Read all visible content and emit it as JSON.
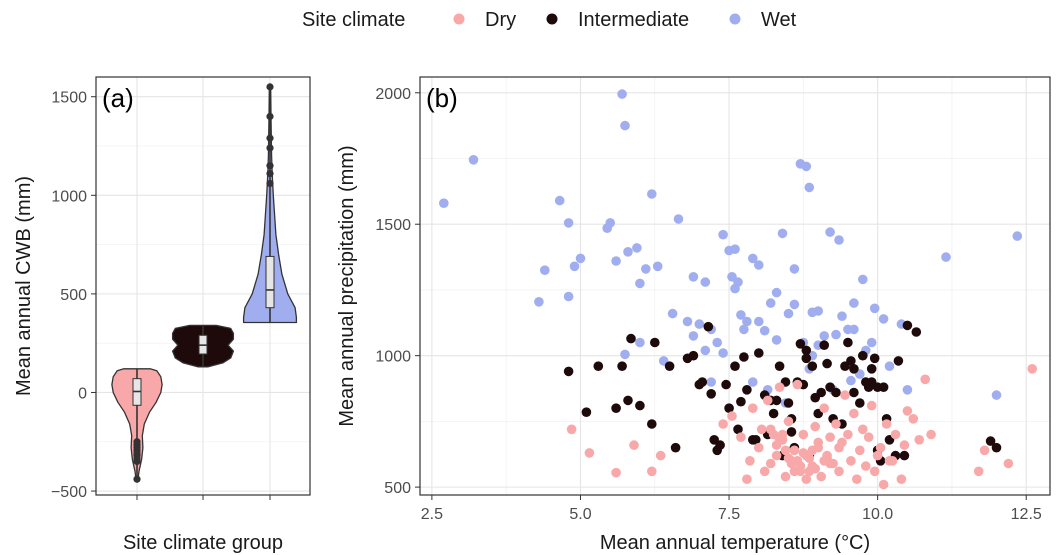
{
  "legend": {
    "title": "Site climate",
    "items": [
      {
        "label": "Dry",
        "color": "#F8A8A8"
      },
      {
        "label": "Intermediate",
        "color": "#1E0A0A"
      },
      {
        "label": "Wet",
        "color": "#A0AEF0"
      }
    ]
  },
  "chart_data": [
    {
      "type": "violin",
      "panel_label": "(a)",
      "xlabel": "Site climate group",
      "ylabel": "Mean annual CWB (mm)",
      "ylim": [
        -520,
        1600
      ],
      "yticks": [
        -500,
        0,
        500,
        1000,
        1500
      ],
      "grid": true,
      "groups": [
        {
          "name": "Dry",
          "color": "#F8A8A8",
          "min": -440,
          "q1": -65,
          "median": 5,
          "q3": 70,
          "max": 120,
          "outliers": [
            -250,
            -265,
            -280,
            -295,
            -310,
            -320,
            -335,
            -350,
            -440
          ],
          "density": [
            [
              -440,
              0.015
            ],
            [
              -400,
              0.03
            ],
            [
              -340,
              0.07
            ],
            [
              -280,
              0.09
            ],
            [
              -220,
              0.08
            ],
            [
              -160,
              0.11
            ],
            [
              -100,
              0.19
            ],
            [
              -50,
              0.29
            ],
            [
              0,
              0.36
            ],
            [
              40,
              0.38
            ],
            [
              80,
              0.36
            ],
            [
              110,
              0.3
            ],
            [
              120,
              0.2
            ]
          ]
        },
        {
          "name": "Intermediate",
          "color": "#1E0A0A",
          "min": 130,
          "q1": 195,
          "median": 240,
          "q3": 290,
          "max": 340,
          "outliers": [],
          "density": [
            [
              130,
              0.08
            ],
            [
              150,
              0.3
            ],
            [
              175,
              0.42
            ],
            [
              210,
              0.46
            ],
            [
              240,
              0.38
            ],
            [
              270,
              0.46
            ],
            [
              300,
              0.46
            ],
            [
              325,
              0.42
            ],
            [
              340,
              0.2
            ]
          ]
        },
        {
          "name": "Wet",
          "color": "#A0AEF0",
          "min": 355,
          "q1": 430,
          "median": 520,
          "q3": 690,
          "max": 1550,
          "outliers": [
            1060,
            1110,
            1150,
            1240,
            1290,
            1400,
            1550
          ],
          "density": [
            [
              355,
              0.4
            ],
            [
              380,
              0.4
            ],
            [
              430,
              0.38
            ],
            [
              500,
              0.27
            ],
            [
              600,
              0.18
            ],
            [
              700,
              0.13
            ],
            [
              800,
              0.09
            ],
            [
              900,
              0.07
            ],
            [
              1000,
              0.05
            ],
            [
              1100,
              0.035
            ],
            [
              1200,
              0.025
            ],
            [
              1300,
              0.02
            ],
            [
              1400,
              0.015
            ],
            [
              1550,
              0.01
            ]
          ]
        }
      ]
    },
    {
      "type": "scatter",
      "panel_label": "(b)",
      "xlabel": "Mean annual temperature (°C)",
      "ylabel": "Mean annual precipitation (mm)",
      "xlim": [
        2.3,
        12.9
      ],
      "ylim": [
        470,
        2060
      ],
      "xticks": [
        2.5,
        5.0,
        7.5,
        10.0,
        12.5
      ],
      "xtick_labels": [
        "2.5",
        "5.0",
        "7.5",
        "10.0",
        "12.5"
      ],
      "yticks": [
        500,
        1000,
        1500,
        2000
      ],
      "grid": true,
      "series": [
        {
          "name": "Wet",
          "color": "#A0AEF0",
          "x": [
            2.7,
            3.2,
            4.3,
            4.4,
            4.65,
            4.8,
            4.8,
            4.9,
            5.0,
            5.45,
            5.5,
            5.6,
            5.7,
            5.75,
            5.75,
            5.8,
            5.95,
            6.0,
            6.1,
            6.2,
            6.3,
            6.55,
            6.65,
            6.9,
            6.9,
            7.0,
            7.1,
            7.2,
            7.4,
            7.5,
            7.55,
            7.6,
            7.65,
            7.7,
            7.9,
            8.0,
            8.2,
            8.4,
            8.6,
            8.7,
            8.8,
            8.85,
            8.9,
            9.0,
            9.2,
            9.35,
            9.5,
            9.6,
            9.75,
            9.95,
            10.1,
            10.4,
            11.15,
            12.0,
            12.35,
            7.3,
            7.8,
            8.1,
            8.3,
            8.5,
            8.75,
            9.1,
            9.3,
            9.6,
            9.9,
            6.8,
            7.1,
            7.4,
            7.6,
            8.0,
            8.3,
            8.6,
            9.0,
            9.4,
            9.8,
            10.2,
            7.9,
            8.15,
            8.45,
            8.85,
            9.25,
            9.55,
            6.0,
            6.4,
            7.2,
            8.9,
            9.7,
            10.5,
            7.75
          ],
          "y": [
            1580,
            1745,
            1205,
            1325,
            1590,
            1225,
            1505,
            1340,
            1370,
            1485,
            1505,
            1360,
            1995,
            1875,
            1005,
            1395,
            1410,
            1275,
            1330,
            1615,
            1340,
            1160,
            1520,
            1300,
            1075,
            1120,
            1020,
            1100,
            1460,
            1400,
            1300,
            1405,
            1280,
            1155,
            1370,
            1345,
            1200,
            1465,
            1330,
            1730,
            1720,
            1640,
            1165,
            1170,
            1470,
            1440,
            1100,
            1200,
            1290,
            1180,
            1140,
            1120,
            1375,
            850,
            1455,
            1050,
            1130,
            1095,
            1240,
            1160,
            1050,
            1075,
            1080,
            1100,
            1050,
            1130,
            1280,
            1010,
            1255,
            1130,
            1060,
            1195,
            1040,
            1150,
            1020,
            960,
            900,
            870,
            820,
            950,
            870,
            905,
            1050,
            980,
            900,
            1000,
            930,
            870,
            1100
          ],
          "note": "values estimated from scatter"
        },
        {
          "name": "Intermediate",
          "color": "#1E0A0A",
          "x": [
            4.8,
            5.1,
            5.3,
            5.6,
            5.7,
            5.8,
            5.85,
            6.0,
            6.2,
            6.5,
            6.6,
            6.8,
            7.0,
            7.05,
            7.2,
            7.3,
            7.35,
            7.5,
            7.6,
            7.7,
            7.75,
            7.8,
            7.9,
            8.0,
            8.1,
            8.2,
            8.3,
            8.35,
            8.45,
            8.5,
            8.55,
            8.6,
            8.65,
            8.7,
            8.75,
            8.8,
            8.85,
            8.9,
            9.0,
            9.1,
            9.2,
            9.3,
            9.4,
            9.5,
            9.55,
            9.6,
            9.7,
            9.8,
            9.85,
            9.9,
            9.95,
            10.0,
            10.05,
            10.1,
            10.2,
            10.3,
            10.5,
            10.65,
            11.9,
            12.0,
            6.25,
            6.9,
            7.15,
            7.45,
            7.65,
            7.95,
            8.15,
            8.4,
            8.95,
            9.15,
            9.45,
            9.75,
            10.15,
            10.35,
            8.25,
            8.55,
            9.05,
            7.25,
            10.0,
            9.6,
            8.8,
            9.25,
            9.9,
            10.45
          ],
          "y": [
            940,
            785,
            960,
            800,
            960,
            830,
            1065,
            810,
            740,
            960,
            650,
            990,
            890,
            900,
            855,
            640,
            660,
            800,
            960,
            825,
            995,
            870,
            680,
            1010,
            850,
            830,
            830,
            960,
            900,
            820,
            760,
            650,
            900,
            1045,
            890,
            1020,
            620,
            960,
            780,
            1040,
            880,
            860,
            740,
            1050,
            980,
            860,
            820,
            900,
            880,
            950,
            990,
            640,
            600,
            880,
            680,
            620,
            1115,
            1090,
            675,
            650,
            1050,
            1000,
            1110,
            890,
            720,
            680,
            700,
            620,
            840,
            970,
            960,
            1000,
            760,
            980,
            780,
            710,
            860,
            680,
            880,
            950,
            990,
            760,
            900,
            620
          ],
          "note": "values estimated from scatter"
        },
        {
          "name": "Dry",
          "color": "#F8A8A8",
          "x": [
            4.85,
            5.15,
            5.6,
            5.9,
            6.2,
            6.35,
            7.4,
            7.55,
            7.7,
            7.8,
            7.85,
            7.9,
            8.0,
            8.05,
            8.1,
            8.15,
            8.2,
            8.25,
            8.3,
            8.35,
            8.4,
            8.45,
            8.5,
            8.55,
            8.6,
            8.65,
            8.7,
            8.75,
            8.8,
            8.85,
            8.9,
            8.95,
            9.0,
            9.05,
            9.1,
            9.15,
            9.2,
            9.25,
            9.3,
            9.35,
            9.4,
            9.45,
            9.5,
            9.55,
            9.6,
            9.65,
            9.7,
            9.75,
            9.8,
            9.85,
            9.9,
            9.95,
            10.0,
            10.05,
            10.1,
            10.15,
            10.2,
            10.3,
            10.4,
            10.5,
            10.6,
            10.7,
            10.8,
            10.9,
            11.7,
            11.8,
            12.2,
            12.6,
            8.3,
            8.5,
            8.7,
            8.9,
            9.1,
            8.4,
            8.6,
            8.8,
            9.0,
            9.2,
            8.2,
            8.45,
            8.65,
            8.85,
            8.35,
            8.55,
            8.75,
            8.95,
            9.15,
            9.35,
            10.25,
            10.45
          ],
          "y": [
            720,
            630,
            555,
            660,
            560,
            620,
            740,
            770,
            690,
            530,
            600,
            800,
            650,
            720,
            560,
            830,
            590,
            700,
            620,
            880,
            680,
            540,
            750,
            600,
            640,
            890,
            560,
            700,
            530,
            610,
            580,
            730,
            650,
            540,
            800,
            620,
            690,
            590,
            740,
            560,
            670,
            850,
            700,
            600,
            780,
            530,
            640,
            720,
            580,
            690,
            810,
            560,
            620,
            650,
            510,
            740,
            600,
            700,
            530,
            790,
            760,
            680,
            910,
            700,
            560,
            640,
            590,
            950,
            660,
            610,
            580,
            640,
            600,
            700,
            560,
            620,
            670,
            590,
            720,
            640,
            600,
            560,
            680,
            590,
            630,
            570,
            610,
            650,
            600,
            660
          ]
        }
      ]
    }
  ]
}
